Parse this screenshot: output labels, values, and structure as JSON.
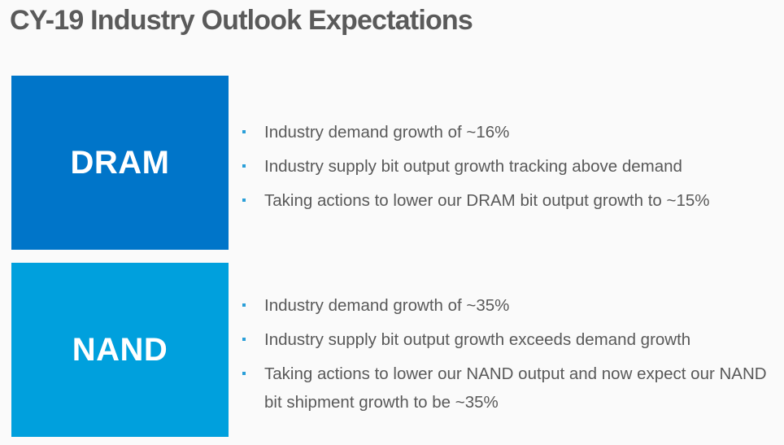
{
  "title": "CY-19 Industry Outlook Expectations",
  "colors": {
    "dram_tile": "#0075c9",
    "nand_tile": "#00a0dd",
    "bullet_marker": "#2a9fd8",
    "title_text": "#5a5a5a",
    "body_text": "#595959"
  },
  "sections": {
    "dram": {
      "label": "DRAM",
      "bullets": [
        "Industry demand growth of ~16%",
        "Industry supply bit output growth tracking above demand",
        "Taking actions to lower our DRAM bit output growth to ~15%"
      ]
    },
    "nand": {
      "label": "NAND",
      "bullets": [
        "Industry demand growth of ~35%",
        "Industry supply bit output growth exceeds demand growth",
        "Taking actions to lower our NAND output and now expect our NAND bit shipment growth to be ~35%"
      ]
    }
  }
}
